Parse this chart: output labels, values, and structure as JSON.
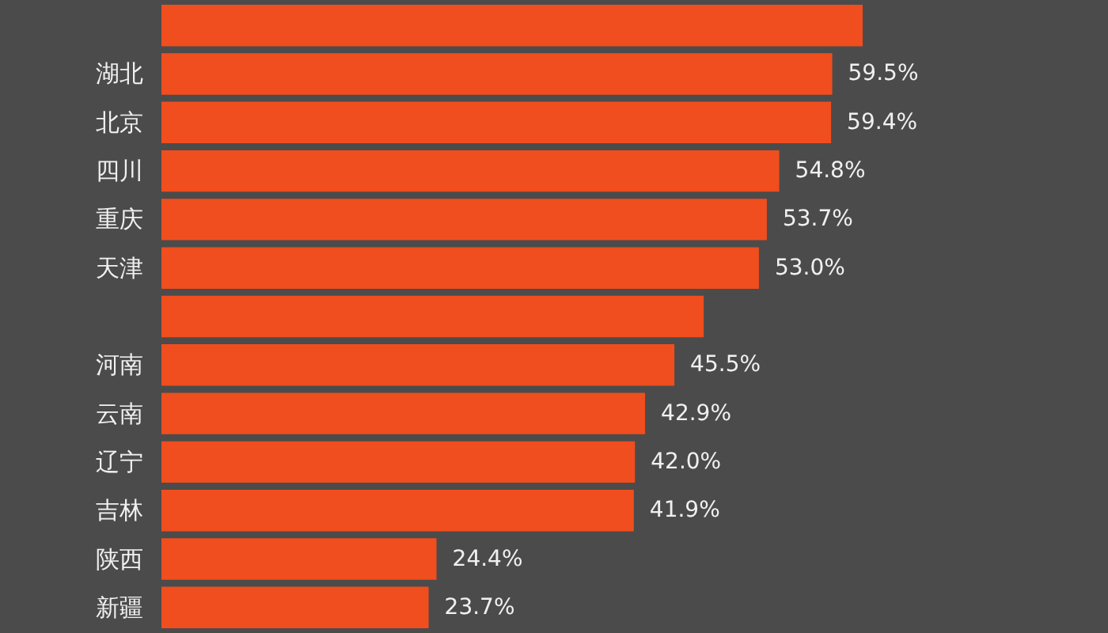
{
  "chart_data": {
    "type": "bar",
    "orientation": "horizontal",
    "categories": [
      null,
      "湖北",
      "北京",
      "四川",
      "重庆",
      "天津",
      null,
      "河南",
      "云南",
      "辽宁",
      "吉林",
      "陕西",
      "新疆"
    ],
    "values": [
      62.2,
      59.5,
      59.4,
      54.8,
      53.7,
      53.0,
      48.1,
      45.5,
      42.9,
      42.0,
      41.9,
      24.4,
      23.7
    ],
    "value_labels": [
      null,
      "59.5%",
      "59.4%",
      "54.8%",
      "53.7%",
      "53.0%",
      null,
      "45.5%",
      "42.9%",
      "42.0%",
      "41.9%",
      "24.4%",
      "23.7%"
    ],
    "color": "#f04e1e",
    "tick_labels": "y"
  }
}
